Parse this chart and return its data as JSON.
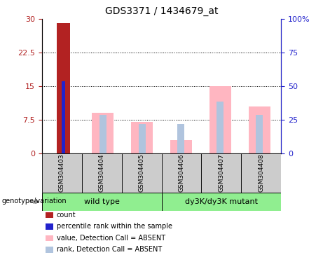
{
  "title": "GDS3371 / 1434679_at",
  "samples": [
    "GSM304403",
    "GSM304404",
    "GSM304405",
    "GSM304406",
    "GSM304407",
    "GSM304408"
  ],
  "left_ylim": [
    0,
    30
  ],
  "right_ylim": [
    0,
    100
  ],
  "left_yticks": [
    0,
    7.5,
    15,
    22.5,
    30
  ],
  "left_yticklabels": [
    "0",
    "7.5",
    "15",
    "22.5",
    "30"
  ],
  "right_yticks": [
    0,
    25,
    50,
    75,
    100
  ],
  "right_yticklabels": [
    "0",
    "25",
    "50",
    "75",
    "100%"
  ],
  "count_bars": [
    29.0,
    null,
    null,
    null,
    null,
    null
  ],
  "rank_bars": [
    16.0,
    null,
    null,
    null,
    null,
    null
  ],
  "value_absent_bars": [
    null,
    9.0,
    7.0,
    3.0,
    15.0,
    10.5
  ],
  "rank_absent_bars": [
    null,
    8.5,
    6.5,
    6.5,
    11.5,
    8.5
  ],
  "colors": {
    "count": "#B22222",
    "rank": "#2222CC",
    "value_absent": "#FFB6C1",
    "rank_absent": "#B0C4DE"
  },
  "wild_type_color": "#90EE90",
  "mutant_color": "#90EE90",
  "grid_yticks": [
    7.5,
    15.0,
    22.5
  ],
  "legend_items": [
    {
      "label": "count",
      "color": "#B22222"
    },
    {
      "label": "percentile rank within the sample",
      "color": "#2222CC"
    },
    {
      "label": "value, Detection Call = ABSENT",
      "color": "#FFB6C1"
    },
    {
      "label": "rank, Detection Call = ABSENT",
      "color": "#B0C4DE"
    }
  ]
}
